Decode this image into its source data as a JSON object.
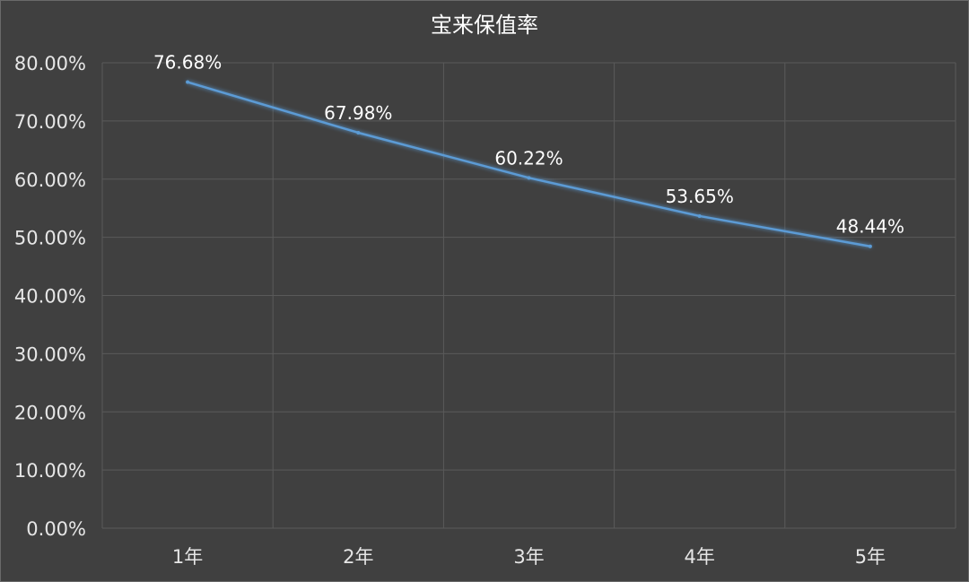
{
  "chart_data": {
    "type": "line",
    "title": "宝来保值率",
    "categories": [
      "1年",
      "2年",
      "3年",
      "4年",
      "5年"
    ],
    "series": [
      {
        "values": [
          76.68,
          67.98,
          60.22,
          53.65,
          48.44
        ],
        "labels": [
          "76.68%",
          "67.98%",
          "60.22%",
          "53.65%",
          "48.44%"
        ]
      }
    ],
    "ylim": [
      0,
      80
    ],
    "yticks": [
      0,
      10,
      20,
      30,
      40,
      50,
      60,
      70,
      80
    ],
    "ytick_labels": [
      "0.00%",
      "10.00%",
      "20.00%",
      "30.00%",
      "40.00%",
      "50.00%",
      "60.00%",
      "70.00%",
      "80.00%"
    ],
    "grid": true,
    "legend": "none",
    "colors": {
      "line": "#5b9bd5",
      "background": "#404040",
      "grid": "#5a5a5a"
    }
  }
}
